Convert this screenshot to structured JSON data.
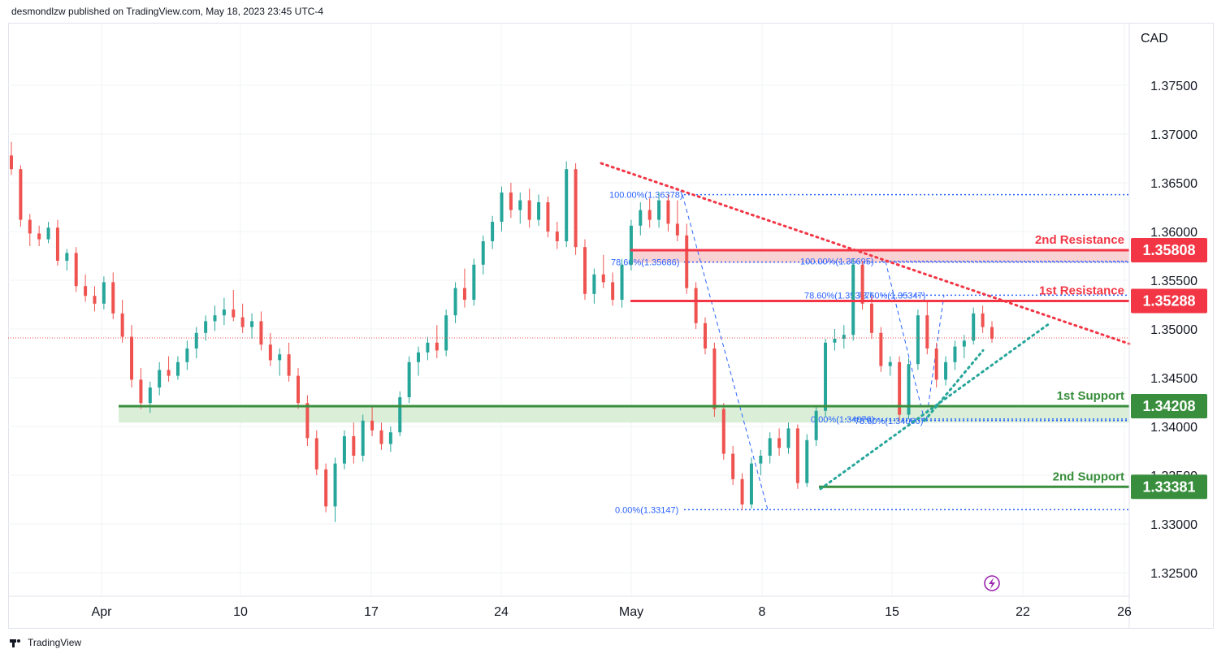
{
  "header": {
    "text": "desmondlzw published on TradingView.com, May 18, 2023 23:45 UTC-4"
  },
  "footer": {
    "brand": "TradingView"
  },
  "colors": {
    "up": "#26a69a",
    "down": "#ef5350",
    "resistance": "#f23645",
    "support": "#388e3c",
    "resistance_zone": "#f8c8c8",
    "support_zone": "#d6ecd4",
    "fib": "#2962ff",
    "trend_down": "#f23645",
    "trend_up": "#26a69a",
    "grid": "#f2f3f5"
  },
  "chart_data": {
    "type": "candlestick",
    "currency": "CAD",
    "ylim": [
      1.322,
      1.381
    ],
    "y_ticks": [
      "1.37500",
      "1.37000",
      "1.36500",
      "1.36000",
      "1.35500",
      "1.35000",
      "1.34500",
      "1.34000",
      "1.33500",
      "1.33000",
      "1.32500"
    ],
    "x_ticks": [
      "Apr",
      "10",
      "17",
      "24",
      "May",
      "8",
      "15",
      "22",
      "26"
    ],
    "levels": [
      {
        "label": "2nd Resistance",
        "value": "1.35808",
        "kind": "resistance"
      },
      {
        "label": "1st Resistance",
        "value": "1.35288",
        "kind": "resistance"
      },
      {
        "label": "1st Support",
        "value": "1.34208",
        "kind": "support"
      },
      {
        "label": "2nd Support",
        "value": "1.33381",
        "kind": "support"
      }
    ],
    "fib_labels": [
      {
        "text": "100.00%(1.36378)",
        "value": 1.36378
      },
      {
        "text": "78.60%(1.35686)",
        "value": 1.35686
      },
      {
        "text": "0.00%(1.33147)",
        "value": 1.33147
      },
      {
        "text": "100.00%(1.35695)",
        "value": 1.35695
      },
      {
        "text": "78.60%(1.35347)",
        "value": 1.35347
      },
      {
        "text": "78.60%(1.35347)",
        "value": 1.35347
      },
      {
        "text": "0.00%(1.34076)",
        "value": 1.34076
      },
      {
        "text": "78.60%(1.34060)",
        "value": 1.3406
      }
    ],
    "last_price": 1.34908,
    "candles": [
      [
        1.3678,
        1.3692,
        1.3658,
        1.3664
      ],
      [
        1.3664,
        1.3668,
        1.3605,
        1.3612
      ],
      [
        1.3612,
        1.3618,
        1.3585,
        1.3598
      ],
      [
        1.3598,
        1.3606,
        1.3585,
        1.3592
      ],
      [
        1.3592,
        1.361,
        1.3588,
        1.3604
      ],
      [
        1.3604,
        1.3612,
        1.3565,
        1.357
      ],
      [
        1.357,
        1.3582,
        1.356,
        1.3578
      ],
      [
        1.3578,
        1.3584,
        1.3538,
        1.3544
      ],
      [
        1.3544,
        1.3556,
        1.3528,
        1.3534
      ],
      [
        1.3534,
        1.3544,
        1.3518,
        1.3526
      ],
      [
        1.3526,
        1.3554,
        1.352,
        1.3548
      ],
      [
        1.3548,
        1.3558,
        1.351,
        1.3516
      ],
      [
        1.3516,
        1.353,
        1.3486,
        1.3492
      ],
      [
        1.3492,
        1.3504,
        1.344,
        1.3448
      ],
      [
        1.3448,
        1.346,
        1.3418,
        1.3424
      ],
      [
        1.3424,
        1.3446,
        1.3414,
        1.344
      ],
      [
        1.344,
        1.3466,
        1.3432,
        1.3458
      ],
      [
        1.3458,
        1.3472,
        1.3446,
        1.3452
      ],
      [
        1.3452,
        1.3472,
        1.3448,
        1.3466
      ],
      [
        1.3466,
        1.3488,
        1.3458,
        1.348
      ],
      [
        1.348,
        1.3502,
        1.347,
        1.3496
      ],
      [
        1.3496,
        1.3514,
        1.3488,
        1.3508
      ],
      [
        1.3508,
        1.3524,
        1.3498,
        1.3514
      ],
      [
        1.3514,
        1.3532,
        1.3504,
        1.352
      ],
      [
        1.352,
        1.354,
        1.3508,
        1.3512
      ],
      [
        1.3512,
        1.3526,
        1.3496,
        1.3502
      ],
      [
        1.3502,
        1.3516,
        1.349,
        1.3508
      ],
      [
        1.3508,
        1.3518,
        1.3478,
        1.3484
      ],
      [
        1.3484,
        1.3496,
        1.3462,
        1.3468
      ],
      [
        1.3468,
        1.348,
        1.3452,
        1.3474
      ],
      [
        1.3474,
        1.3486,
        1.3446,
        1.3452
      ],
      [
        1.3452,
        1.346,
        1.3418,
        1.3424
      ],
      [
        1.3424,
        1.3432,
        1.338,
        1.3388
      ],
      [
        1.3388,
        1.3396,
        1.335,
        1.3356
      ],
      [
        1.3356,
        1.3362,
        1.3312,
        1.3318
      ],
      [
        1.3318,
        1.3368,
        1.3302,
        1.3362
      ],
      [
        1.3362,
        1.3396,
        1.3356,
        1.339
      ],
      [
        1.339,
        1.3404,
        1.3362,
        1.337
      ],
      [
        1.337,
        1.3412,
        1.3364,
        1.3406
      ],
      [
        1.3406,
        1.3422,
        1.339,
        1.3396
      ],
      [
        1.3396,
        1.3404,
        1.3376,
        1.3382
      ],
      [
        1.3382,
        1.34,
        1.3374,
        1.3394
      ],
      [
        1.3394,
        1.3436,
        1.339,
        1.343
      ],
      [
        1.343,
        1.3472,
        1.3424,
        1.3466
      ],
      [
        1.3466,
        1.3482,
        1.3452,
        1.3476
      ],
      [
        1.3476,
        1.3492,
        1.3468,
        1.3486
      ],
      [
        1.3486,
        1.3504,
        1.347,
        1.3478
      ],
      [
        1.3478,
        1.352,
        1.3472,
        1.3514
      ],
      [
        1.3514,
        1.3548,
        1.3506,
        1.3542
      ],
      [
        1.3542,
        1.3562,
        1.3522,
        1.353
      ],
      [
        1.353,
        1.3572,
        1.3524,
        1.3566
      ],
      [
        1.3566,
        1.3596,
        1.3556,
        1.359
      ],
      [
        1.359,
        1.3616,
        1.3582,
        1.361
      ],
      [
        1.361,
        1.3646,
        1.36,
        1.364
      ],
      [
        1.364,
        1.365,
        1.3614,
        1.3622
      ],
      [
        1.3622,
        1.364,
        1.3608,
        1.3632
      ],
      [
        1.3632,
        1.3644,
        1.3604,
        1.3612
      ],
      [
        1.3612,
        1.3638,
        1.3606,
        1.363
      ],
      [
        1.363,
        1.3636,
        1.3594,
        1.36
      ],
      [
        1.36,
        1.361,
        1.3582,
        1.359
      ],
      [
        1.359,
        1.3672,
        1.3584,
        1.3664
      ],
      [
        1.3664,
        1.367,
        1.3576,
        1.3584
      ],
      [
        1.3584,
        1.3592,
        1.353,
        1.3536
      ],
      [
        1.3536,
        1.3562,
        1.3526,
        1.3556
      ],
      [
        1.3556,
        1.3576,
        1.3542,
        1.3548
      ],
      [
        1.3548,
        1.3558,
        1.3524,
        1.353
      ],
      [
        1.353,
        1.3572,
        1.3522,
        1.3566
      ],
      [
        1.3566,
        1.3612,
        1.356,
        1.3606
      ],
      [
        1.3606,
        1.363,
        1.3596,
        1.3622
      ],
      [
        1.3622,
        1.3634,
        1.3604,
        1.3612
      ],
      [
        1.3612,
        1.364,
        1.3604,
        1.3632
      ],
      [
        1.3632,
        1.3638,
        1.36,
        1.3608
      ],
      [
        1.3608,
        1.3632,
        1.359,
        1.3596
      ],
      [
        1.3596,
        1.3608,
        1.3536,
        1.3542
      ],
      [
        1.3542,
        1.3548,
        1.35,
        1.3506
      ],
      [
        1.3506,
        1.3512,
        1.3474,
        1.348
      ],
      [
        1.348,
        1.3486,
        1.341,
        1.3418
      ],
      [
        1.3418,
        1.3424,
        1.3366,
        1.3372
      ],
      [
        1.3372,
        1.338,
        1.334,
        1.3346
      ],
      [
        1.3346,
        1.3352,
        1.3314,
        1.332
      ],
      [
        1.332,
        1.3368,
        1.3316,
        1.3362
      ],
      [
        1.3362,
        1.3376,
        1.335,
        1.337
      ],
      [
        1.337,
        1.3394,
        1.3362,
        1.3388
      ],
      [
        1.3388,
        1.3398,
        1.337,
        1.3378
      ],
      [
        1.3378,
        1.3404,
        1.3372,
        1.3398
      ],
      [
        1.3398,
        1.3402,
        1.3336,
        1.3342
      ],
      [
        1.3342,
        1.3392,
        1.3338,
        1.3386
      ],
      [
        1.3386,
        1.342,
        1.338,
        1.3416
      ],
      [
        1.3416,
        1.349,
        1.341,
        1.3486
      ],
      [
        1.3486,
        1.35,
        1.3478,
        1.349
      ],
      [
        1.349,
        1.3504,
        1.348,
        1.3494
      ],
      [
        1.3494,
        1.3572,
        1.3488,
        1.3566
      ],
      [
        1.3566,
        1.357,
        1.352,
        1.3526
      ],
      [
        1.3526,
        1.3534,
        1.349,
        1.3496
      ],
      [
        1.3496,
        1.3502,
        1.3456,
        1.3462
      ],
      [
        1.3462,
        1.3472,
        1.3452,
        1.3466
      ],
      [
        1.3466,
        1.3472,
        1.3406,
        1.3412
      ],
      [
        1.3412,
        1.347,
        1.3408,
        1.3464
      ],
      [
        1.3464,
        1.352,
        1.3458,
        1.3514
      ],
      [
        1.3514,
        1.353,
        1.3474,
        1.348
      ],
      [
        1.348,
        1.3486,
        1.344,
        1.3448
      ],
      [
        1.3448,
        1.3472,
        1.3442,
        1.3466
      ],
      [
        1.3466,
        1.3488,
        1.3458,
        1.3482
      ],
      [
        1.3482,
        1.3494,
        1.347,
        1.3488
      ],
      [
        1.3488,
        1.3522,
        1.3484,
        1.3516
      ],
      [
        1.3516,
        1.3524,
        1.3496,
        1.3502
      ],
      [
        1.3502,
        1.3508,
        1.3486,
        1.349
      ]
    ]
  }
}
